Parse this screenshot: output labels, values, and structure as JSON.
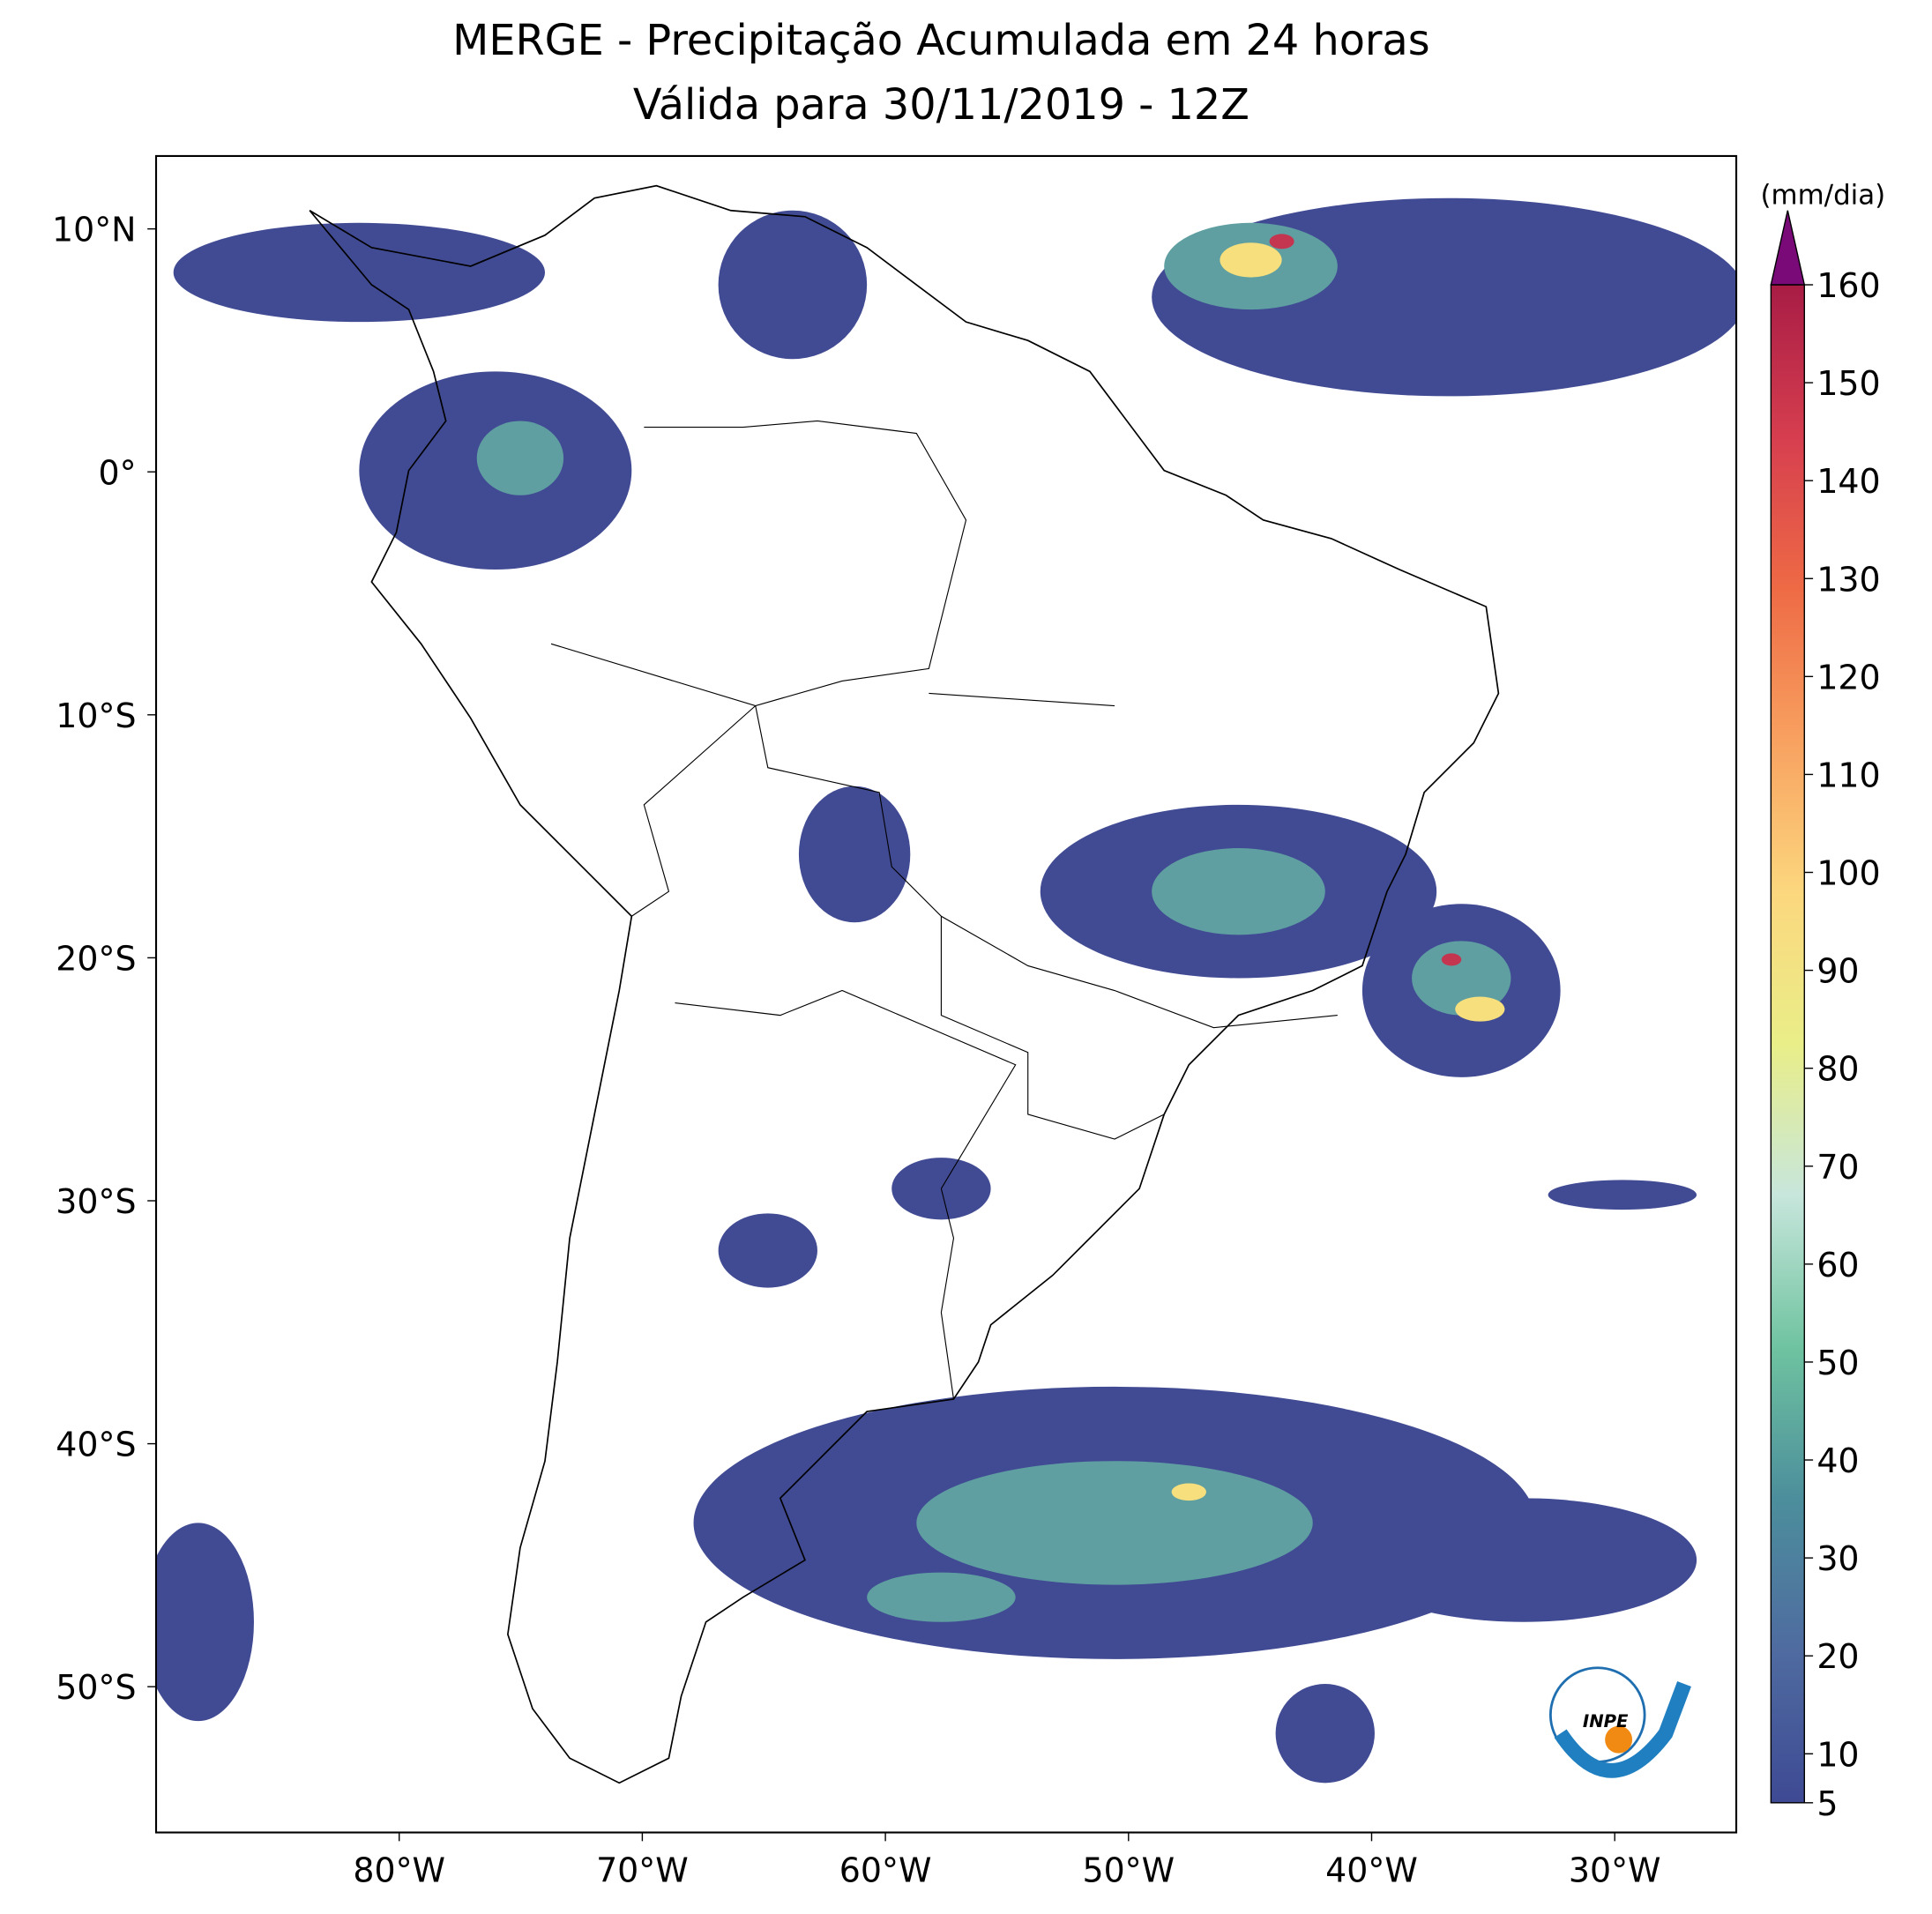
{
  "chart_data": {
    "type": "map",
    "title": "MERGE - Precipitação Acumulada em 24 horas",
    "subtitle": "Válida para 30/11/2019 - 12Z",
    "xlim": [
      -90,
      -25
    ],
    "ylim": [
      -56,
      13
    ],
    "xticks": [
      {
        "value": -80,
        "label": "80°W"
      },
      {
        "value": -70,
        "label": "70°W"
      },
      {
        "value": -60,
        "label": "60°W"
      },
      {
        "value": -50,
        "label": "50°W"
      },
      {
        "value": -40,
        "label": "40°W"
      },
      {
        "value": -30,
        "label": "30°W"
      }
    ],
    "yticks": [
      {
        "value": 10,
        "label": "10°N"
      },
      {
        "value": 0,
        "label": "0°"
      },
      {
        "value": -10,
        "label": "10°S"
      },
      {
        "value": -20,
        "label": "20°S"
      },
      {
        "value": -30,
        "label": "30°S"
      },
      {
        "value": -40,
        "label": "40°S"
      },
      {
        "value": -50,
        "label": "50°S"
      }
    ],
    "colorbar": {
      "label": "(mm/dia)",
      "lim": [
        5,
        160
      ],
      "ticks": [
        5,
        10,
        20,
        30,
        40,
        50,
        60,
        70,
        80,
        90,
        100,
        110,
        120,
        130,
        140,
        150,
        160
      ],
      "colors": [
        "#3e4a94",
        "#4f6ba0",
        "#4c8e9c",
        "#6fc3a0",
        "#c7e6dc",
        "#e9ee88",
        "#fcd77e",
        "#f8a160",
        "#ee6a45",
        "#d63e4f",
        "#a81c45"
      ],
      "extend_color": "#7a0a78"
    },
    "logo": "INPE"
  }
}
